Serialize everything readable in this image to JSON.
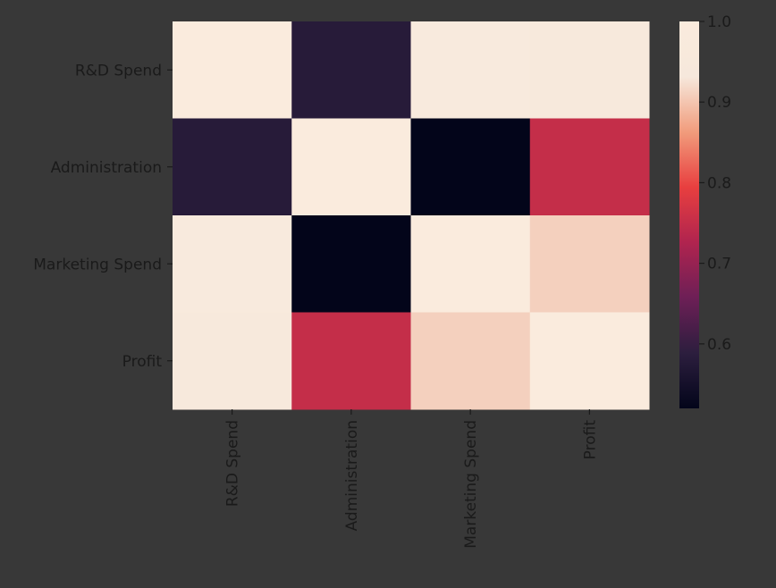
{
  "chart_data": {
    "type": "heatmap",
    "title": "",
    "xlabel": "",
    "ylabel": "",
    "rows": [
      "R&D Spend",
      "Administration",
      "Marketing Spend",
      "Profit"
    ],
    "columns": [
      "R&D Spend",
      "Administration",
      "Marketing Spend",
      "Profit"
    ],
    "values": [
      [
        1.0,
        0.58,
        0.97,
        0.95
      ],
      [
        0.58,
        1.0,
        0.52,
        0.75
      ],
      [
        0.97,
        0.52,
        1.0,
        0.91
      ],
      [
        0.95,
        0.75,
        0.91,
        1.0
      ]
    ],
    "colorbar": {
      "min": 0.52,
      "max": 1.0,
      "ticks": [
        {
          "value": 0.6,
          "label": "0.6"
        },
        {
          "value": 0.7,
          "label": "0.7"
        },
        {
          "value": 0.8,
          "label": "0.8"
        },
        {
          "value": 0.9,
          "label": "0.9"
        },
        {
          "value": 1.0,
          "label": "1.0"
        }
      ],
      "colormap": "rocket",
      "stops": [
        "#03051a",
        "#2c1e3e",
        "#6d1f56",
        "#b0244f",
        "#e83f3f",
        "#f19c7c",
        "#f6e8dc",
        "#faebdd"
      ]
    }
  }
}
